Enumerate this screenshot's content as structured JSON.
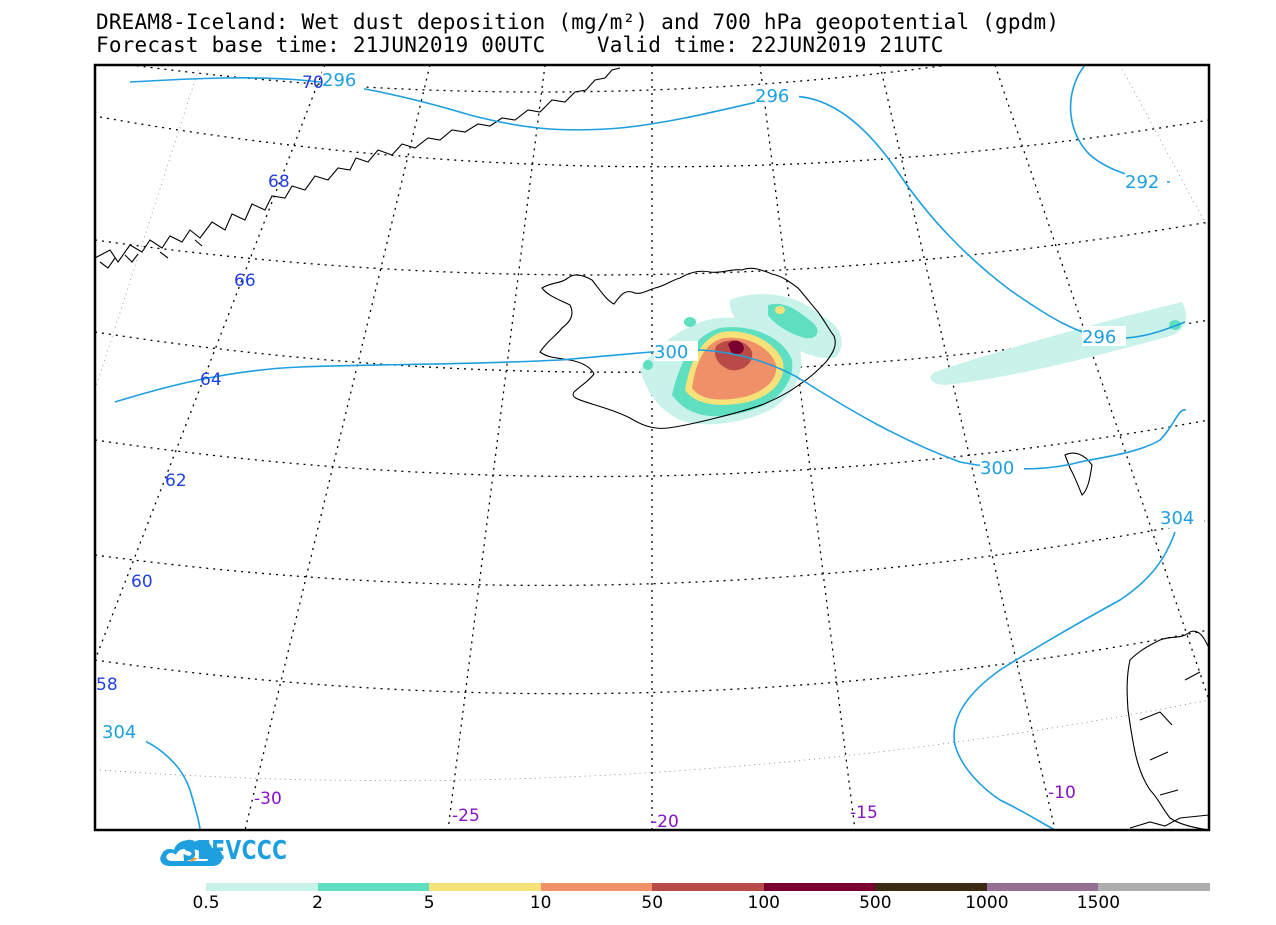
{
  "header": {
    "title_line1": "DREAM8-Iceland: Wet dust deposition (mg/m²) and 700 hPa geopotential (gpdm)",
    "title_line2": "Forecast base time: 21JUN2019 00UTC    Valid time: 22JUN2019 21UTC"
  },
  "map": {
    "latitude_labels": [
      "70",
      "68",
      "66",
      "64",
      "62",
      "60",
      "58"
    ],
    "longitude_labels": [
      "-30",
      "-25",
      "-20",
      "-15",
      "-10"
    ],
    "contour_labels": [
      "296",
      "296",
      "292",
      "296",
      "300",
      "300",
      "304",
      "304"
    ],
    "colors": {
      "contour": "#1e9fe0",
      "latitude_label": "#2040e0",
      "longitude_label": "#8a10c8",
      "coastline": "#000000"
    }
  },
  "logo": {
    "text": "SEEVCCC",
    "color": "#1e9fe0"
  },
  "colorbar": {
    "colors": [
      "#c8f2ea",
      "#5ddfc0",
      "#f7e27a",
      "#ef9068",
      "#b84a48",
      "#7a0030",
      "#3c2a14",
      "#957094",
      "#adadad"
    ],
    "labels": [
      "0.5",
      "2",
      "5",
      "10",
      "50",
      "100",
      "500",
      "1000",
      "1500"
    ]
  }
}
